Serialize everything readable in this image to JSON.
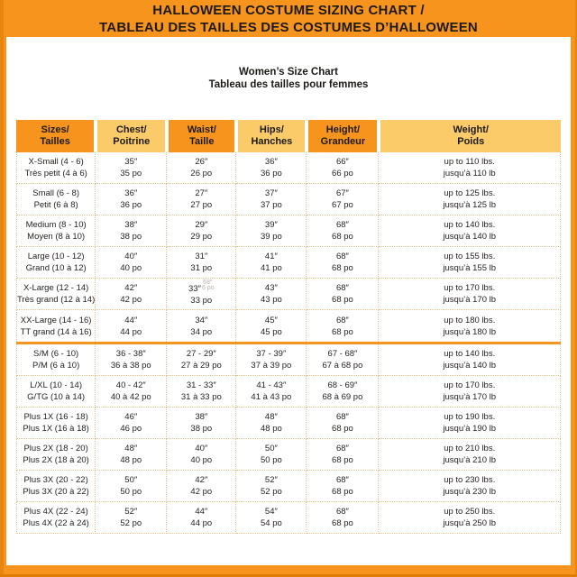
{
  "banner": {
    "line1": "HALLOWEEN COSTUME SIZING CHART /",
    "line2": "TABLEAU DES TAILLES DES COSTUMES D’HALLOWEEN"
  },
  "subtitle": {
    "line1": "Women’s Size Chart",
    "line2": "Tableau des tailles pour femmes"
  },
  "colors": {
    "orange": "#F7941E",
    "gold": "#FACB68",
    "grid_dots": "#E9C08C",
    "edge_dark": "#E8850E",
    "text": "#272320",
    "card_bg": "#FFFFFF"
  },
  "table": {
    "headers": [
      {
        "key": "sizes",
        "en": "Sizes/",
        "fr": "Tailles",
        "tone": "dark"
      },
      {
        "key": "chest",
        "en": "Chest/",
        "fr": "Poitrine",
        "tone": "light"
      },
      {
        "key": "waist",
        "en": "Waist/",
        "fr": "Taille",
        "tone": "dark"
      },
      {
        "key": "hips",
        "en": "Hips/",
        "fr": "Hanches",
        "tone": "light"
      },
      {
        "key": "height",
        "en": "Height/",
        "fr": "Grandeur",
        "tone": "dark"
      },
      {
        "key": "weight",
        "en": "Weight/",
        "fr": "Poids",
        "tone": "light"
      }
    ],
    "groups": [
      {
        "rows": [
          {
            "cells": [
              [
                "X-Small (4 - 6)",
                "Très petit (4 à 6)"
              ],
              [
                "35″",
                "35 po"
              ],
              [
                "26″",
                "26 po"
              ],
              [
                "36″",
                "36 po"
              ],
              [
                "66″",
                "66 po"
              ],
              [
                "up to 110 lbs.",
                "jusqu’à 110 lb"
              ]
            ]
          },
          {
            "cells": [
              [
                "Small (6 - 8)",
                "Petit (6 à 8)"
              ],
              [
                "36″",
                "36 po"
              ],
              [
                "27″",
                "27 po"
              ],
              [
                "37″",
                "37 po"
              ],
              [
                "67″",
                "67 po"
              ],
              [
                "up to 125 lbs.",
                "jusqu’à 125 lb"
              ]
            ]
          },
          {
            "cells": [
              [
                "Medium (8 - 10)",
                "Moyen (8 à 10)"
              ],
              [
                "38″",
                "38 po"
              ],
              [
                "29″",
                "29 po"
              ],
              [
                "39″",
                "39 po"
              ],
              [
                "68″",
                "68 po"
              ],
              [
                "up to 140 lbs.",
                "jusqu’à 140 lb"
              ]
            ]
          },
          {
            "cells": [
              [
                "Large (10 - 12)",
                "Grand (10 à 12)"
              ],
              [
                "40″",
                "40 po"
              ],
              [
                "31″",
                "31 po"
              ],
              [
                "41″",
                "41 po"
              ],
              [
                "68″",
                "68 po"
              ],
              [
                "up to 155 lbs.",
                "jusqu’à 155 lb"
              ]
            ]
          },
          {
            "cells": [
              [
                "X-Large (12 - 14)",
                "Très grand (12 à 14)"
              ],
              [
                "42″",
                "42 po"
              ],
              [
                "33″",
                "33 po"
              ],
              [
                "43″",
                "43 po"
              ],
              [
                "68″",
                "68 po"
              ],
              [
                "up to 170 lbs.",
                "jusqu’à 170 lb"
              ]
            ],
            "ghost": {
              "cell": 2,
              "top": "68″",
              "inline": "6 po"
            }
          },
          {
            "cells": [
              [
                "XX-Large (14 - 16)",
                "TT grand (14 à 16)"
              ],
              [
                "44″",
                "44 po"
              ],
              [
                "34″",
                "34 po"
              ],
              [
                "45″",
                "45 po"
              ],
              [
                "68″",
                "68 po"
              ],
              [
                "up to 180 lbs.",
                "jusqu’à 180 lb"
              ]
            ]
          }
        ]
      },
      {
        "rows": [
          {
            "cells": [
              [
                "S/M (6 - 10)",
                "P/M (6 à 10)"
              ],
              [
                "36 - 38″",
                "36 à 38 po"
              ],
              [
                "27 - 29″",
                "27 à 29 po"
              ],
              [
                "37 - 39″",
                "37 à 39 po"
              ],
              [
                "67 - 68″",
                "67 à 68 po"
              ],
              [
                "up to 140 lbs.",
                "jusqu’à 140 lb"
              ]
            ]
          },
          {
            "cells": [
              [
                "L/XL (10 - 14)",
                "G/TG (10 à 14)"
              ],
              [
                "40 - 42″",
                "40 à 42 po"
              ],
              [
                "31 - 33″",
                "31 à 33 po"
              ],
              [
                "41 - 43″",
                "41 à 43 po"
              ],
              [
                "68 - 69″",
                "68 à 69 po"
              ],
              [
                "up to 170 lbs.",
                "jusqu’à 170 lb"
              ]
            ]
          },
          {
            "cells": [
              [
                "Plus 1X (16 - 18)",
                "Plus 1X (16 à 18)"
              ],
              [
                "46″",
                "46 po"
              ],
              [
                "38″",
                "38 po"
              ],
              [
                "48″",
                "48 po"
              ],
              [
                "68″",
                "68 po"
              ],
              [
                "up to 190 lbs.",
                "jusqu’à 190 lb"
              ]
            ]
          },
          {
            "cells": [
              [
                "Plus 2X (18 - 20)",
                "Plus 2X (18 à 20)"
              ],
              [
                "48″",
                "48 po"
              ],
              [
                "40″",
                "40 po"
              ],
              [
                "50″",
                "50 po"
              ],
              [
                "68″",
                "68 po"
              ],
              [
                "up to 210 lbs.",
                "jusqu’à 210 lb"
              ]
            ]
          },
          {
            "cells": [
              [
                "Plus 3X (20 - 22)",
                "Plus 3X (20 à 22)"
              ],
              [
                "50″",
                "50 po"
              ],
              [
                "42″",
                "42 po"
              ],
              [
                "52″",
                "52 po"
              ],
              [
                "68″",
                "68 po"
              ],
              [
                "up to 230 lbs.",
                "jusqu’à 230 lb"
              ]
            ]
          },
          {
            "cells": [
              [
                "Plus 4X (22 - 24)",
                "Plus 4X (22 à 24)"
              ],
              [
                "52″",
                "52 po"
              ],
              [
                "44″",
                "44 po"
              ],
              [
                "54″",
                "54 po"
              ],
              [
                "68″",
                "68 po"
              ],
              [
                "up to 250 lbs.",
                "jusqu’à 250 lb"
              ]
            ]
          }
        ]
      }
    ]
  }
}
